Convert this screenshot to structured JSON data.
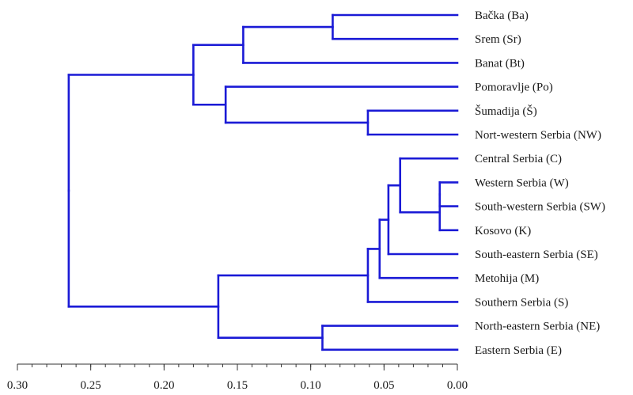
{
  "chart_data": {
    "type": "dendrogram",
    "orientation": "horizontal",
    "x_axis": {
      "direction": "reversed",
      "range": [
        0.3,
        0.0
      ],
      "tick_labels": [
        "0.30",
        "0.25",
        "0.20",
        "0.15",
        "0.10",
        "0.05",
        "0.00"
      ],
      "tick_values": [
        0.3,
        0.25,
        0.2,
        0.15,
        0.1,
        0.05,
        0.0
      ],
      "minor_ticks_per_major": 5
    },
    "leaves": [
      "Bačka (Ba)",
      "Srem (Sr)",
      "Banat (Bt)",
      "Pomoravlje (Po)",
      "Šumadija (Š)",
      "Nort-western Serbia (NW)",
      "Central Serbia (C)",
      "Western Serbia (W)",
      "South-western Serbia (SW)",
      "Kosovo (K)",
      "South-eastern Serbia (SE)",
      "Metohija (M)",
      "Southern Serbia (S)",
      "North-eastern Serbia (NE)",
      "Eastern Serbia (E)"
    ],
    "merges": [
      {
        "id": "m1",
        "height": 0.085,
        "children": [
          "L0",
          "L1"
        ]
      },
      {
        "id": "m2",
        "height": 0.146,
        "children": [
          "m1",
          "L2"
        ]
      },
      {
        "id": "m3",
        "height": 0.061,
        "children": [
          "L4",
          "L5"
        ]
      },
      {
        "id": "m4",
        "height": 0.158,
        "children": [
          "L3",
          "m3"
        ]
      },
      {
        "id": "m5",
        "height": 0.18,
        "children": [
          "m2",
          "m4"
        ]
      },
      {
        "id": "m6",
        "height": 0.012,
        "children": [
          "L7",
          "L8"
        ]
      },
      {
        "id": "m7",
        "height": 0.012,
        "children": [
          "m6",
          "L9"
        ]
      },
      {
        "id": "m8",
        "height": 0.039,
        "children": [
          "L6",
          "m7"
        ]
      },
      {
        "id": "m9",
        "height": 0.047,
        "children": [
          "m8",
          "L10"
        ]
      },
      {
        "id": "m10",
        "height": 0.053,
        "children": [
          "m9",
          "L11"
        ]
      },
      {
        "id": "m11",
        "height": 0.061,
        "children": [
          "m10",
          "L12"
        ]
      },
      {
        "id": "m12",
        "height": 0.092,
        "children": [
          "L13",
          "L14"
        ]
      },
      {
        "id": "m13",
        "height": 0.163,
        "children": [
          "m11",
          "m12"
        ]
      },
      {
        "id": "m14",
        "height": 0.265,
        "children": [
          "m5",
          "m13"
        ]
      }
    ],
    "colors": {
      "branch": "#1a1ad6",
      "axis": "#333333",
      "text": "#1a1a1a"
    }
  }
}
